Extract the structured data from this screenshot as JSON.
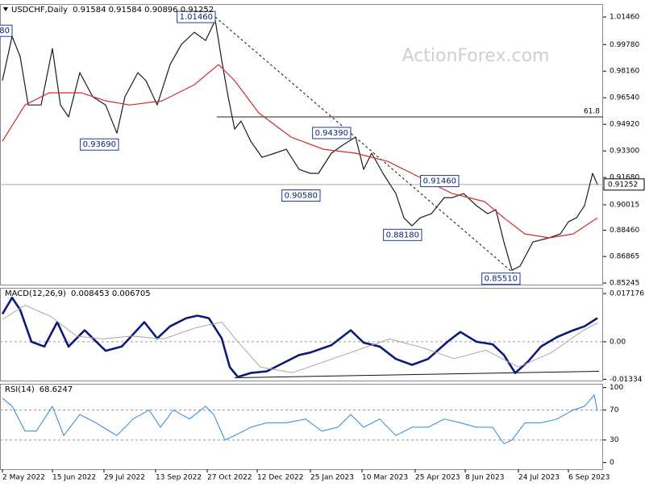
{
  "chart_data": [
    {
      "type": "line",
      "title": "USDCHF,Daily",
      "subtitle": "0.91584 0.91584 0.90896 0.91252",
      "watermark": "ActionForex.com",
      "xlim": [
        -1.5,
        372.5
      ],
      "ylim": [
        0.8515,
        1.0225
      ],
      "yticks": [
        {
          "value": 1.0146,
          "label": "1.01460"
        },
        {
          "value": 0.9978,
          "label": "0.99780"
        },
        {
          "value": 0.9816,
          "label": "0.98160"
        },
        {
          "value": 0.9654,
          "label": "0.96540"
        },
        {
          "value": 0.9492,
          "label": "0.94920"
        },
        {
          "value": 0.933,
          "label": "0.93300"
        },
        {
          "value": 0.9168,
          "label": "0.91680"
        },
        {
          "value": 0.90015,
          "label": "0.90015"
        },
        {
          "value": 0.8846,
          "label": "0.88460"
        },
        {
          "value": 0.86865,
          "label": "0.86865"
        },
        {
          "value": 0.85245,
          "label": "0.85245"
        }
      ],
      "series": [
        {
          "color": "#1c1c1c",
          "width": 1.2,
          "x": [
            0,
            6,
            11,
            16,
            24,
            31,
            36,
            41,
            48,
            56,
            64,
            71,
            76,
            84,
            89,
            96,
            104,
            111,
            119,
            126,
            132,
            136,
            140,
            144,
            148,
            154,
            161,
            169,
            176,
            184,
            191,
            196,
            204,
            211,
            219,
            224,
            229,
            236,
            244,
            249,
            254,
            259,
            266,
            274,
            279,
            286,
            294,
            301,
            306,
            311,
            316,
            321,
            329,
            339,
            346,
            351,
            356,
            361,
            366,
            369
          ],
          "values": [
            0.9758,
            1.0028,
            0.9905,
            0.961,
            0.961,
            0.9954,
            0.961,
            0.9537,
            0.9807,
            0.966,
            0.961,
            0.9438,
            0.966,
            0.9807,
            0.9758,
            0.961,
            0.9856,
            0.9979,
            1.0053,
            1.0003,
            1.0126,
            0.9881,
            0.966,
            0.9463,
            0.9512,
            0.9389,
            0.9291,
            0.9316,
            0.934,
            0.9217,
            0.9193,
            0.9193,
            0.9316,
            0.9365,
            0.9414,
            0.9217,
            0.9316,
            0.9193,
            0.907,
            0.8922,
            0.8873,
            0.8922,
            0.8947,
            0.9045,
            0.9045,
            0.907,
            0.8996,
            0.8947,
            0.8972,
            0.8775,
            0.8603,
            0.8628,
            0.8775,
            0.88,
            0.8824,
            0.8898,
            0.8922,
            0.8996,
            0.9193,
            0.9125
          ]
        },
        {
          "color": "#d42a2a",
          "width": 1.2,
          "x": [
            0,
            14,
            29,
            49,
            64,
            79,
            99,
            119,
            134,
            144,
            159,
            179,
            199,
            219,
            239,
            259,
            279,
            299,
            311,
            324,
            339,
            354,
            369
          ],
          "values": [
            0.9389,
            0.961,
            0.9684,
            0.9684,
            0.9635,
            0.961,
            0.9635,
            0.9733,
            0.9856,
            0.9758,
            0.9561,
            0.9414,
            0.934,
            0.9316,
            0.9266,
            0.9168,
            0.907,
            0.9021,
            0.8922,
            0.8824,
            0.88,
            0.8824,
            0.8922
          ]
        }
      ],
      "current_price": 0.91252,
      "level": {
        "label": "61.8",
        "value": 0.9537,
        "x": 133
      },
      "trendline": {
        "x": [
          132,
          321
        ],
        "y": [
          1.0146,
          0.8551
        ]
      },
      "annotations": [
        {
          "text": "80",
          "x": 6,
          "y": 1.0062
        },
        {
          "text": "1.01460",
          "x": 132,
          "y": 1.0146
        },
        {
          "text": "0.93690",
          "x": 72,
          "y": 0.9369
        },
        {
          "text": "0.90580",
          "x": 197,
          "y": 0.9058
        },
        {
          "text": "0.94390",
          "x": 216,
          "y": 0.9439
        },
        {
          "text": "0.91460",
          "x": 283,
          "y": 0.9146
        },
        {
          "text": "0.88180",
          "x": 260,
          "y": 0.8818
        },
        {
          "text": "0.85510",
          "x": 321,
          "y": 0.8551
        }
      ]
    },
    {
      "type": "line",
      "title": "MACD(12,26,9)",
      "subtitle": "0.008453 0.006705",
      "xlim": [
        -1.5,
        372.5
      ],
      "ylim": [
        -0.0138,
        0.0192
      ],
      "yticks": [
        0.017176,
        {
          "value": 0,
          "label": "0.00"
        },
        -0.01334
      ],
      "levels": [
        0
      ],
      "series": [
        {
          "color": "#0c1a78",
          "width": 2.6,
          "x": [
            0,
            6,
            11,
            18,
            26,
            34,
            41,
            51,
            64,
            74,
            81,
            88,
            96,
            104,
            114,
            121,
            128,
            136,
            141,
            146,
            154,
            164,
            174,
            184,
            191,
            204,
            216,
            224,
            234,
            244,
            254,
            264,
            276,
            284,
            294,
            304,
            311,
            318,
            326,
            334,
            344,
            354,
            361,
            369
          ],
          "values": [
            0.0099,
            0.0157,
            0.0114,
            0,
            -0.0017,
            0.007,
            -0.0017,
            0.0041,
            -0.0032,
            -0.0017,
            0.0026,
            0.007,
            0.0012,
            0.0055,
            0.0084,
            0.0093,
            0.0084,
            0.0012,
            -0.009,
            -0.0125,
            -0.0111,
            -0.0105,
            -0.0076,
            -0.0047,
            -0.0038,
            -0.0012,
            0.0041,
            -0.0003,
            -0.0017,
            -0.0061,
            -0.0082,
            -0.0061,
            0,
            0.0035,
            0,
            -0.0009,
            -0.0047,
            -0.0111,
            -0.007,
            -0.0017,
            0.0017,
            0.0041,
            0.0055,
            0.008453
          ]
        },
        {
          "color": "#a8a8a8",
          "width": 1,
          "x": [
            0,
            14,
            30,
            46,
            62,
            80,
            100,
            120,
            136,
            146,
            160,
            180,
            200,
            220,
            240,
            260,
            280,
            300,
            320,
            340,
            360,
            369
          ],
          "values": [
            0.008,
            0.013,
            0.009,
            0.002,
            0.001,
            0.002,
            0.001,
            0.005,
            0.007,
            0,
            -0.009,
            -0.011,
            -0.007,
            -0.003,
            0.001,
            -0.002,
            -0.006,
            -0.003,
            -0.009,
            -0.004,
            0.004,
            0.006705
          ]
        }
      ],
      "trendline": {
        "x": [
          144,
          370
        ],
        "y": [
          -0.0128,
          -0.0105
        ]
      }
    },
    {
      "type": "line",
      "title": "RSI(14)",
      "subtitle": "68.6247",
      "xlim": [
        -1.5,
        372.5
      ],
      "ylim": [
        -9,
        105
      ],
      "yticks": [
        100,
        70,
        30,
        0
      ],
      "levels": [
        70,
        30
      ],
      "xticks": [
        {
          "value": 0,
          "label": "2 May 2022"
        },
        {
          "value": 31,
          "label": "15 Jun 2022"
        },
        {
          "value": 63,
          "label": "29 Jul 2022"
        },
        {
          "value": 95,
          "label": "13 Sep 2022"
        },
        {
          "value": 127,
          "label": "27 Oct 2022"
        },
        {
          "value": 158,
          "label": "12 Dec 2022"
        },
        {
          "value": 191,
          "label": "25 Jan 2023"
        },
        {
          "value": 223,
          "label": "10 Mar 2023"
        },
        {
          "value": 256,
          "label": "25 Apr 2023"
        },
        {
          "value": 287,
          "label": "8 Jun 2023"
        },
        {
          "value": 320,
          "label": "24 Jul 2023"
        },
        {
          "value": 351,
          "label": "6 Sep 2023"
        }
      ],
      "series": [
        {
          "color": "#2e86d9",
          "width": 1,
          "x": [
            0,
            6,
            14,
            21,
            31,
            38,
            48,
            58,
            71,
            81,
            91,
            98,
            106,
            116,
            126,
            131,
            138,
            144,
            154,
            164,
            176,
            188,
            198,
            208,
            216,
            224,
            234,
            244,
            254,
            264,
            274,
            284,
            294,
            304,
            311,
            316,
            324,
            334,
            344,
            354,
            361,
            367,
            369
          ],
          "values": [
            86,
            75,
            42,
            42,
            75,
            36,
            64,
            53,
            36,
            58,
            70,
            47,
            70,
            58,
            75,
            64,
            30,
            36,
            47,
            53,
            53,
            58,
            42,
            47,
            64,
            47,
            58,
            36,
            47,
            47,
            58,
            53,
            47,
            47,
            25,
            30,
            53,
            53,
            58,
            70,
            75,
            90,
            68.6247
          ]
        }
      ]
    }
  ]
}
